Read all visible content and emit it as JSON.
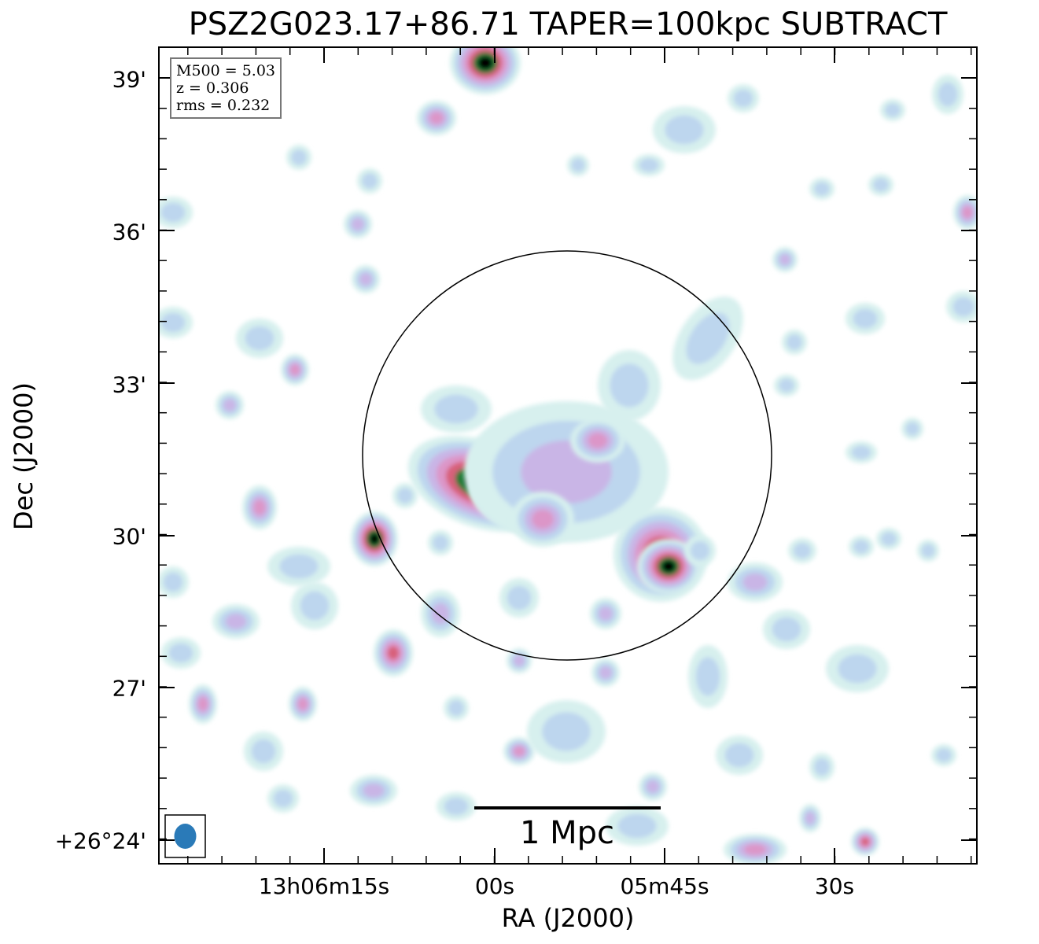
{
  "chart_data": {
    "type": "heatmap",
    "title": "PSZ2G023.17+86.71 TAPER=100kpc SUBTRACT",
    "xlabel": "RA (J2000)",
    "ylabel": "Dec (J2000)",
    "x_tick_labels": [
      "13h06m15s",
      "00s",
      "05m45s",
      "30s"
    ],
    "y_tick_labels": [
      "39'",
      "36'",
      "33'",
      "30'",
      "27'",
      "+26°24'"
    ],
    "info": {
      "m500": "M500 = 5.03",
      "z": "z = 0.306",
      "rms": "rms = 0.232"
    },
    "scale_bar_label": "1 Mpc",
    "beam_color": "#2a7ab8",
    "circle_color": "#000000",
    "colormap": [
      "#ffffff",
      "#d7f0ee",
      "#bdd6ee",
      "#c9b5e6",
      "#dc96c8",
      "#d8607a",
      "#1f7a35",
      "#000000"
    ]
  }
}
